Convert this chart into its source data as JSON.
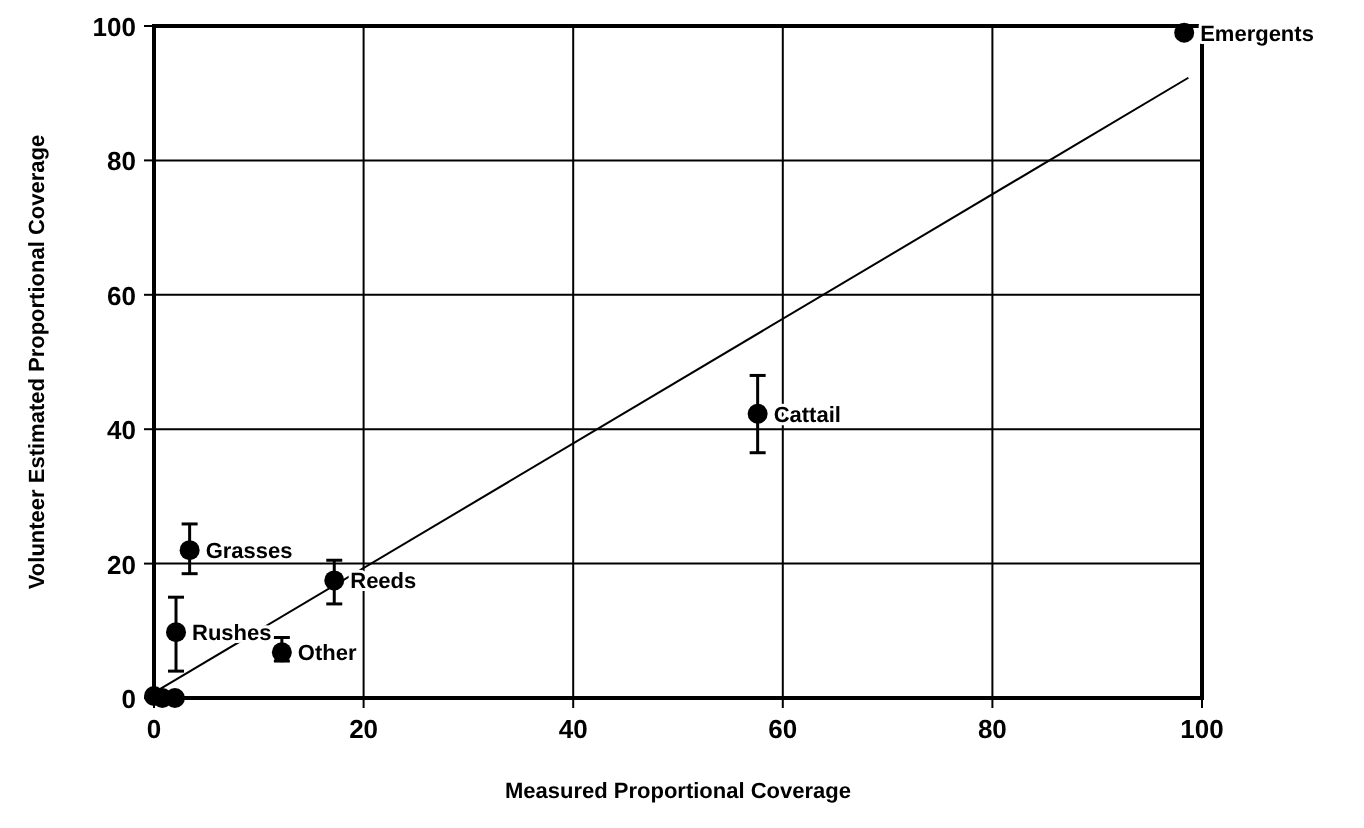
{
  "chart_data": {
    "type": "scatter",
    "xlabel": "Measured Proportional Coverage",
    "ylabel": "Volunteer Estimated Proportional Coverage",
    "xlim": [
      0,
      100
    ],
    "ylim": [
      0,
      100
    ],
    "xticks": [
      0,
      20,
      40,
      60,
      80,
      100
    ],
    "yticks": [
      0,
      20,
      40,
      60,
      80,
      100
    ],
    "grid": true,
    "series": [
      {
        "color": "#000000",
        "marker": "circle",
        "x": [
          98.3,
          57.6,
          3.4,
          17.2,
          2.1,
          12.2,
          0,
          0.8,
          2
        ],
        "values": [
          99,
          42.3,
          22,
          17.5,
          9.8,
          6.8,
          0.3,
          0,
          0
        ],
        "errors": [
          null,
          [
            36.5,
            48
          ],
          [
            18.5,
            25.9
          ],
          [
            14,
            20.5
          ],
          [
            4,
            15
          ],
          [
            5.5,
            9
          ],
          null,
          null,
          null
        ]
      },
      {
        "type": "line",
        "color": "#000000",
        "x": [
          0,
          98.7
        ],
        "values": [
          0.8,
          92.3
        ]
      }
    ],
    "annotations": [
      {
        "text": "Emergents",
        "x": 98.3,
        "y": 99
      },
      {
        "text": "Cattail",
        "x": 57.6,
        "y": 42.3
      },
      {
        "text": "Grasses",
        "x": 3.4,
        "y": 22
      },
      {
        "text": "Reeds",
        "x": 17.2,
        "y": 17.5
      },
      {
        "text": "Rushes",
        "x": 2.1,
        "y": 9.8
      },
      {
        "text": "Other",
        "x": 12.2,
        "y": 6.8
      }
    ]
  }
}
